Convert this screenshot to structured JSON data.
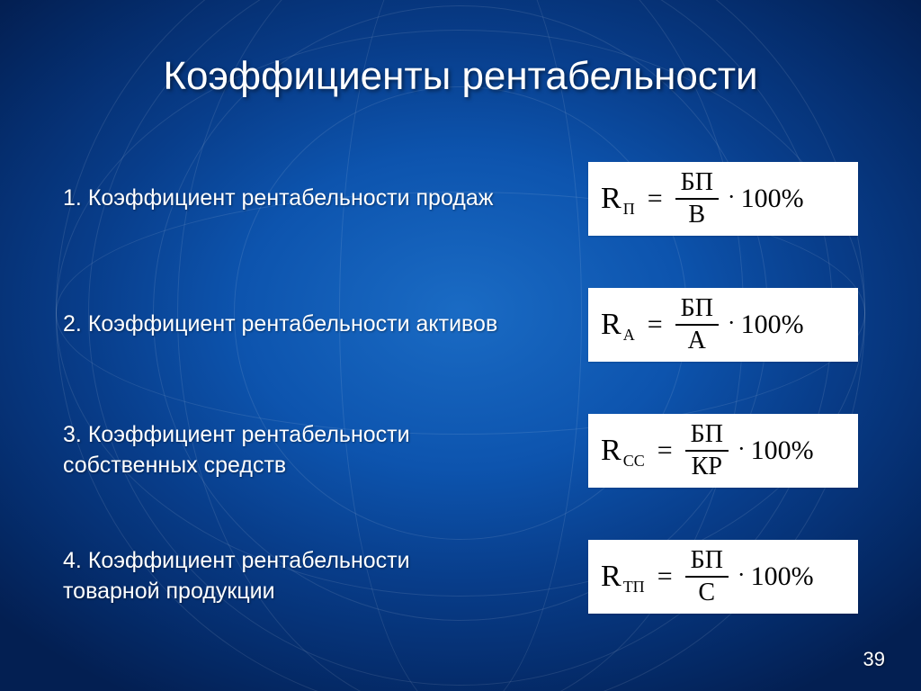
{
  "title": "Коэффициенты рентабельности",
  "page_number": "39",
  "colors": {
    "background_center": "#1a6bc4",
    "background_edge": "#031f52",
    "text": "#ffffff",
    "formula_bg": "#ffffff",
    "formula_text": "#000000"
  },
  "typography": {
    "title_fontsize": 44,
    "label_fontsize": 25,
    "formula_fontsize": 30,
    "font_family_body": "Arial",
    "font_family_formula": "Times New Roman"
  },
  "items": [
    {
      "num": "1.",
      "label": "Коэффициент рентабельности продаж",
      "subscript": "П",
      "numerator": "БП",
      "denominator": "В",
      "suffix": "100%"
    },
    {
      "num": "2.",
      "label": "Коэффициент рентабельности активов",
      "subscript": "А",
      "numerator": "БП",
      "denominator": "А",
      "suffix": "100%"
    },
    {
      "num": "3.",
      "label": "Коэффициент рентабельности собственных средств",
      "subscript": "СС",
      "numerator": "БП",
      "denominator": "КР",
      "suffix": "100%"
    },
    {
      "num": "4.",
      "label": "Коэффициент рентабельности товарной продукции",
      "subscript": "ТП",
      "numerator": "БП",
      "denominator": "С",
      "suffix": "100%"
    }
  ]
}
